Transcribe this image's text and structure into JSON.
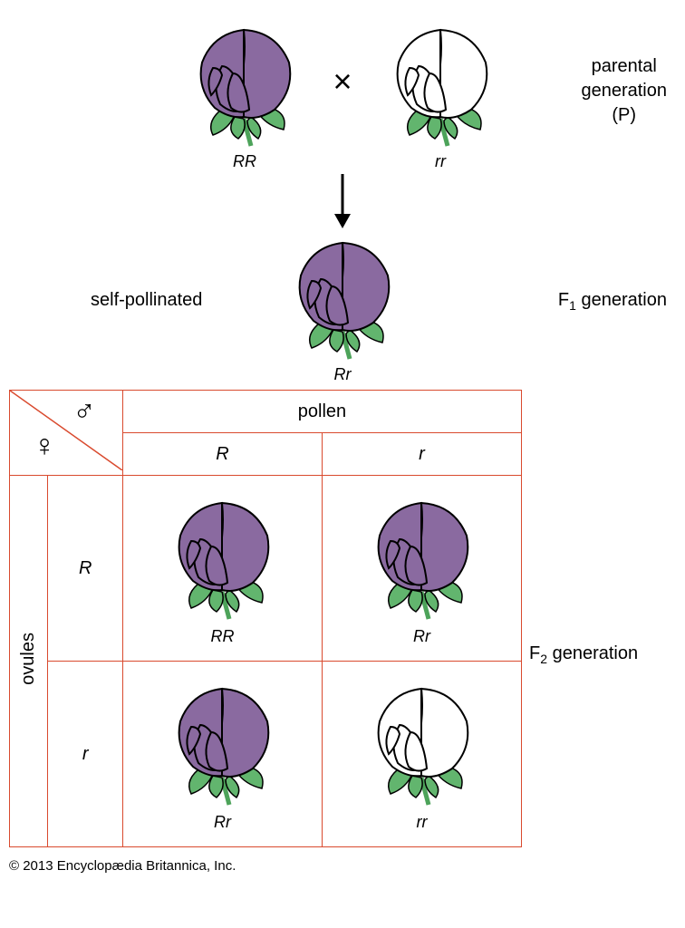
{
  "colors": {
    "purple": "#8a6aa0",
    "outline": "#000000",
    "leaf": "#62b56e",
    "stem": "#4da35a",
    "border": "#d94a2e",
    "white": "#ffffff"
  },
  "labels": {
    "parental_line1": "parental",
    "parental_line2": "generation",
    "parental_line3": "(P)",
    "self_pollinated": "self-pollinated",
    "f1": "F",
    "f1_sub": "1",
    "f1_suffix": " generation",
    "f2": "F",
    "f2_sub": "2",
    "f2_suffix": " generation",
    "pollen": "pollen",
    "ovules": "ovules",
    "cross": "×",
    "male": "♂",
    "female": "♀"
  },
  "parents": {
    "p1_genotype": "RR",
    "p1_color": "purple",
    "p2_genotype": "rr",
    "p2_color": "white"
  },
  "f1": {
    "genotype": "Rr",
    "color": "purple"
  },
  "punnett": {
    "pollen_alleles": [
      "R",
      "r"
    ],
    "ovule_alleles": [
      "R",
      "r"
    ],
    "cells": [
      {
        "genotype": "RR",
        "color": "purple"
      },
      {
        "genotype": "Rr",
        "color": "purple"
      },
      {
        "genotype": "Rr",
        "color": "purple"
      },
      {
        "genotype": "rr",
        "color": "white"
      }
    ]
  },
  "copyright": "© 2013 Encyclopædia Britannica, Inc."
}
